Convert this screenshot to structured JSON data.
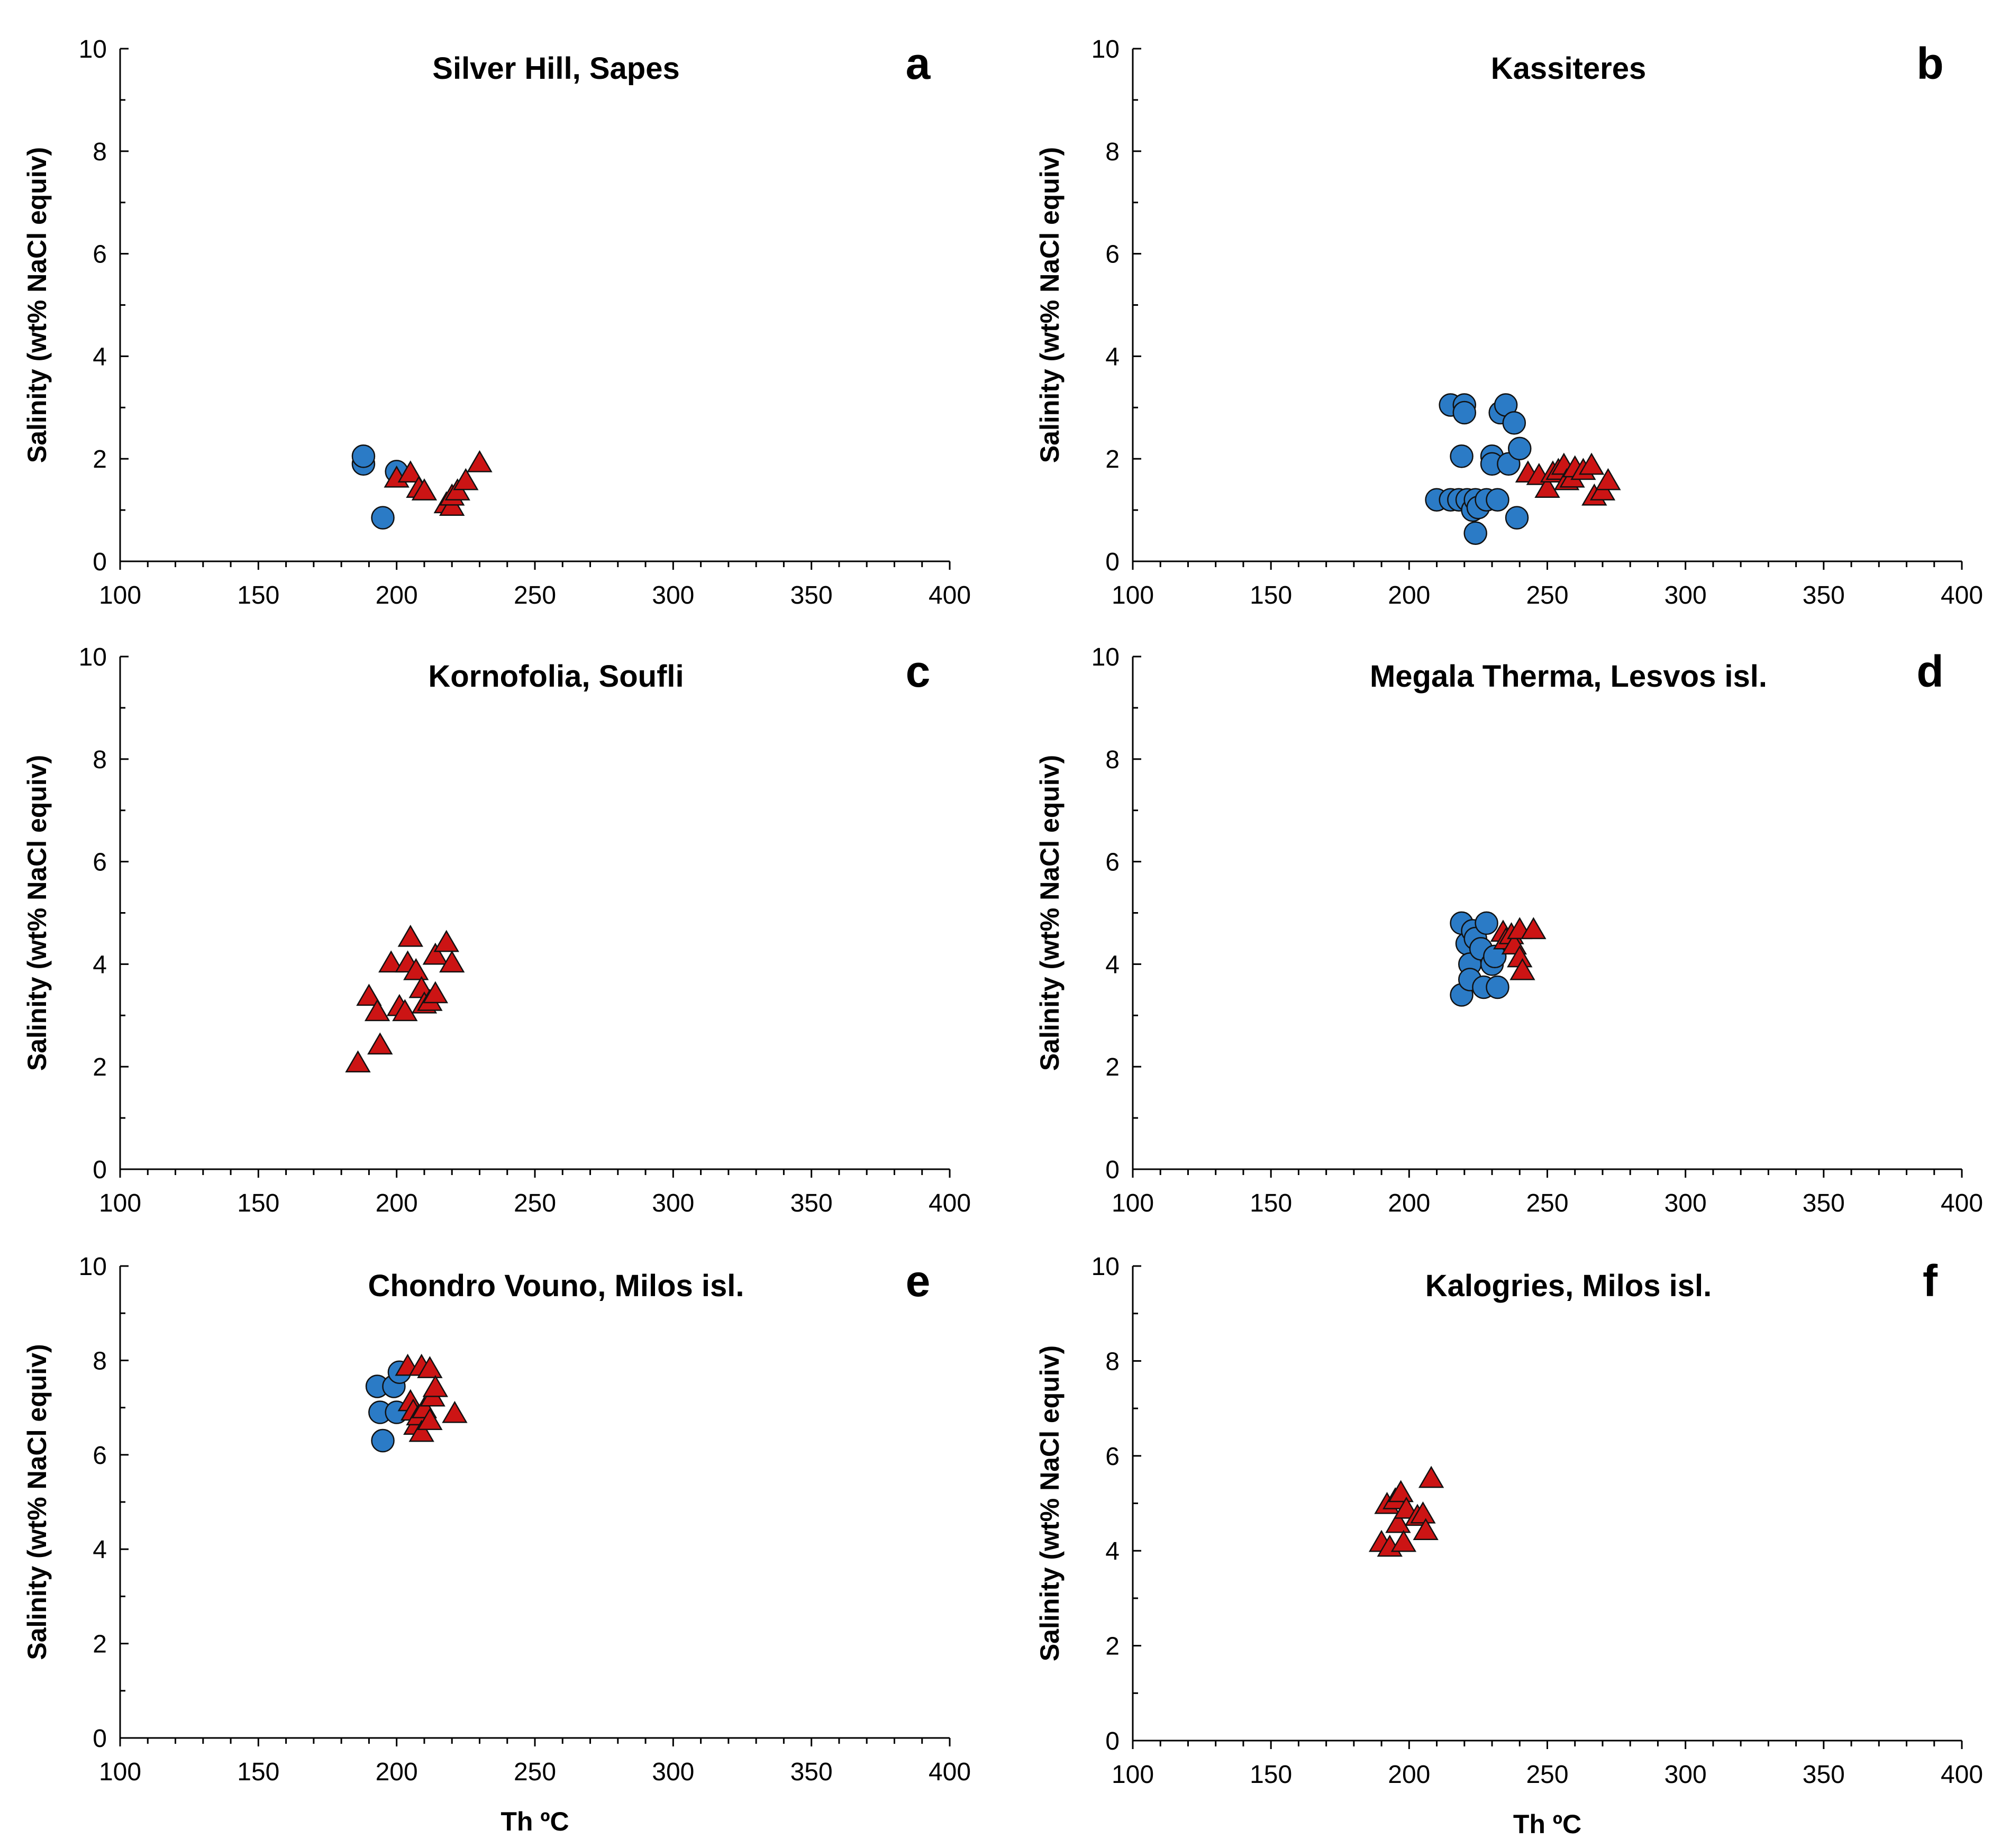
{
  "chart_data": [
    {
      "type": "scatter",
      "letter": "a",
      "title": "Silver Hill, Sapes",
      "ylabel": "Salinity (wt% NaCl equiv)",
      "xlabel": "",
      "xlim": [
        100,
        400
      ],
      "ylim": [
        0,
        10
      ],
      "xticks": [
        100,
        150,
        200,
        250,
        300,
        350,
        400
      ],
      "yticks": [
        0,
        2,
        4,
        6,
        8,
        10
      ],
      "series": [
        {
          "marker": "circle",
          "color": "#2b7bc6",
          "points": [
            [
              188,
              1.9
            ],
            [
              188,
              2.05
            ],
            [
              195,
              0.85
            ],
            [
              200,
              1.75
            ]
          ]
        },
        {
          "marker": "triangle",
          "color": "#cc1414",
          "points": [
            [
              200,
              1.6
            ],
            [
              205,
              1.7
            ],
            [
              208,
              1.4
            ],
            [
              210,
              1.35
            ],
            [
              218,
              1.1
            ],
            [
              220,
              1.05
            ],
            [
              220,
              1.25
            ],
            [
              222,
              1.35
            ],
            [
              225,
              1.55
            ],
            [
              230,
              1.9
            ]
          ]
        }
      ]
    },
    {
      "type": "scatter",
      "letter": "b",
      "title": "Kassiteres",
      "ylabel": "Salinity (wt% NaCl equiv)",
      "xlabel": "",
      "xlim": [
        100,
        400
      ],
      "ylim": [
        0,
        10
      ],
      "xticks": [
        100,
        150,
        200,
        250,
        300,
        350,
        400
      ],
      "yticks": [
        0,
        2,
        4,
        6,
        8,
        10
      ],
      "series": [
        {
          "marker": "circle",
          "color": "#2b7bc6",
          "points": [
            [
              210,
              1.2
            ],
            [
              215,
              3.05
            ],
            [
              215,
              1.2
            ],
            [
              218,
              1.2
            ],
            [
              219,
              2.05
            ],
            [
              220,
              3.05
            ],
            [
              220,
              2.9
            ],
            [
              221,
              1.2
            ],
            [
              223,
              1.0
            ],
            [
              224,
              0.55
            ],
            [
              224,
              1.2
            ],
            [
              225,
              1.05
            ],
            [
              228,
              1.2
            ],
            [
              230,
              2.05
            ],
            [
              230,
              1.9
            ],
            [
              232,
              1.2
            ],
            [
              233,
              2.9
            ],
            [
              235,
              3.05
            ],
            [
              236,
              1.9
            ],
            [
              238,
              2.7
            ],
            [
              239,
              0.85
            ],
            [
              240,
              2.2
            ]
          ]
        },
        {
          "marker": "triangle",
          "color": "#cc1414",
          "points": [
            [
              243,
              1.7
            ],
            [
              247,
              1.65
            ],
            [
              250,
              1.4
            ],
            [
              252,
              1.7
            ],
            [
              254,
              1.75
            ],
            [
              256,
              1.85
            ],
            [
              257,
              1.55
            ],
            [
              259,
              1.6
            ],
            [
              260,
              1.8
            ],
            [
              263,
              1.75
            ],
            [
              266,
              1.85
            ],
            [
              267,
              1.25
            ],
            [
              270,
              1.35
            ],
            [
              272,
              1.55
            ]
          ]
        }
      ]
    },
    {
      "type": "scatter",
      "letter": "c",
      "title": "Kornofolia, Soufli",
      "ylabel": "Salinity (wt% NaCl equiv)",
      "xlabel": "",
      "xlim": [
        100,
        400
      ],
      "ylim": [
        0,
        10
      ],
      "xticks": [
        100,
        150,
        200,
        250,
        300,
        350,
        400
      ],
      "yticks": [
        0,
        2,
        4,
        6,
        8,
        10
      ],
      "series": [
        {
          "marker": "circle",
          "color": "#2b7bc6",
          "points": []
        },
        {
          "marker": "triangle",
          "color": "#cc1414",
          "points": [
            [
              186,
              2.05
            ],
            [
              190,
              3.35
            ],
            [
              193,
              3.05
            ],
            [
              194,
              2.4
            ],
            [
              198,
              4.0
            ],
            [
              201,
              3.15
            ],
            [
              203,
              3.05
            ],
            [
              204,
              4.0
            ],
            [
              205,
              4.5
            ],
            [
              207,
              3.85
            ],
            [
              209,
              3.5
            ],
            [
              210,
              3.2
            ],
            [
              212,
              3.25
            ],
            [
              214,
              3.4
            ],
            [
              214,
              4.15
            ],
            [
              218,
              4.4
            ],
            [
              220,
              4.0
            ]
          ]
        }
      ]
    },
    {
      "type": "scatter",
      "letter": "d",
      "title": "Megala Therma, Lesvos isl.",
      "ylabel": "Salinity (wt% NaCl equiv)",
      "xlabel": "",
      "xlim": [
        100,
        400
      ],
      "ylim": [
        0,
        10
      ],
      "xticks": [
        100,
        150,
        200,
        250,
        300,
        350,
        400
      ],
      "yticks": [
        0,
        2,
        4,
        6,
        8,
        10
      ],
      "series": [
        {
          "marker": "circle",
          "color": "#2b7bc6",
          "points": [
            [
              219,
              4.8
            ],
            [
              219,
              3.4
            ],
            [
              221,
              4.4
            ],
            [
              222,
              4.0
            ],
            [
              222,
              3.7
            ],
            [
              223,
              4.65
            ],
            [
              224,
              4.5
            ],
            [
              226,
              4.3
            ],
            [
              227,
              3.55
            ],
            [
              228,
              4.8
            ],
            [
              230,
              4.0
            ],
            [
              231,
              4.15
            ],
            [
              232,
              3.55
            ]
          ]
        },
        {
          "marker": "triangle",
          "color": "#cc1414",
          "points": [
            [
              234,
              4.6
            ],
            [
              235,
              4.45
            ],
            [
              237,
              4.55
            ],
            [
              238,
              4.35
            ],
            [
              240,
              4.65
            ],
            [
              240,
              4.1
            ],
            [
              241,
              3.85
            ],
            [
              245,
              4.65
            ]
          ]
        }
      ]
    },
    {
      "type": "scatter",
      "letter": "e",
      "title": "Chondro Vouno, Milos isl.",
      "ylabel": "Salinity (wt% NaCl equiv)",
      "xlabel": "Th ºC",
      "xlim": [
        100,
        400
      ],
      "ylim": [
        0,
        10
      ],
      "xticks": [
        100,
        150,
        200,
        250,
        300,
        350,
        400
      ],
      "yticks": [
        0,
        2,
        4,
        6,
        8,
        10
      ],
      "series": [
        {
          "marker": "circle",
          "color": "#2b7bc6",
          "points": [
            [
              193,
              7.45
            ],
            [
              194,
              6.9
            ],
            [
              195,
              6.3
            ],
            [
              199,
              7.45
            ],
            [
              200,
              6.9
            ],
            [
              201,
              7.75
            ]
          ]
        },
        {
          "marker": "triangle",
          "color": "#cc1414",
          "points": [
            [
              204,
              7.85
            ],
            [
              205,
              7.1
            ],
            [
              206,
              6.9
            ],
            [
              207,
              6.6
            ],
            [
              208,
              6.8
            ],
            [
              209,
              7.85
            ],
            [
              209,
              6.45
            ],
            [
              210,
              6.95
            ],
            [
              212,
              7.8
            ],
            [
              212,
              6.7
            ],
            [
              213,
              7.2
            ],
            [
              214,
              7.4
            ],
            [
              221,
              6.85
            ]
          ]
        }
      ]
    },
    {
      "type": "scatter",
      "letter": "f",
      "title": "Kalogries, Milos isl.",
      "ylabel": "Salinity (wt% NaCl equiv)",
      "xlabel": "Th ºC",
      "xlim": [
        100,
        400
      ],
      "ylim": [
        0,
        10
      ],
      "xticks": [
        100,
        150,
        200,
        250,
        300,
        350,
        400
      ],
      "yticks": [
        0,
        2,
        4,
        6,
        8,
        10
      ],
      "series": [
        {
          "marker": "circle",
          "color": "#2b7bc6",
          "points": []
        },
        {
          "marker": "triangle",
          "color": "#cc1414",
          "points": [
            [
              190,
              4.15
            ],
            [
              192,
              4.95
            ],
            [
              193,
              4.05
            ],
            [
              195,
              5.05
            ],
            [
              196,
              4.55
            ],
            [
              197,
              5.2
            ],
            [
              198,
              4.15
            ],
            [
              199,
              4.85
            ],
            [
              203,
              4.7
            ],
            [
              205,
              4.75
            ],
            [
              206,
              4.4
            ],
            [
              208,
              5.5
            ]
          ]
        }
      ]
    }
  ]
}
